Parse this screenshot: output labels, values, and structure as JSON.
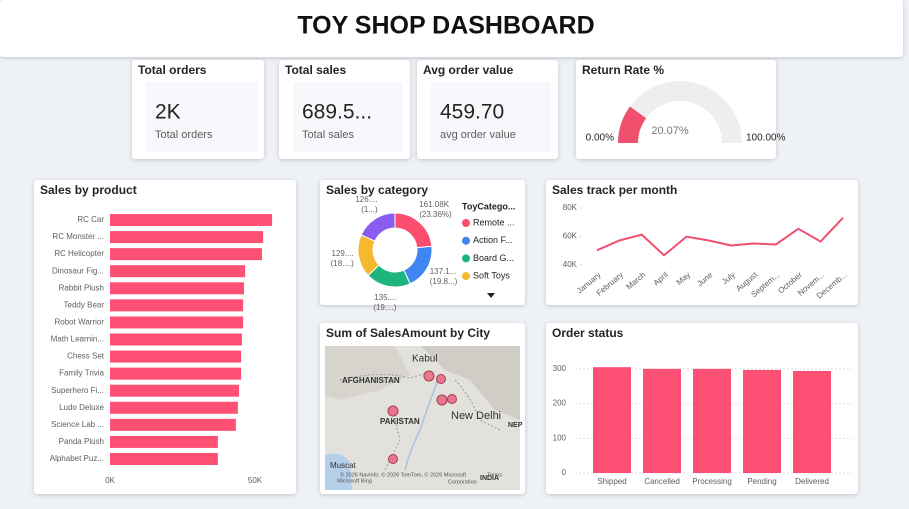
{
  "header": {
    "title": "TOY SHOP DASHBOARD"
  },
  "cards": [
    {
      "title": "Total orders",
      "value": "2K",
      "label": "Total orders"
    },
    {
      "title": "Total sales",
      "value": "689.5...",
      "label": "Total sales"
    },
    {
      "title": "Avg order value",
      "value": "459.70",
      "label": "avg order value"
    }
  ],
  "chart_data": [
    {
      "type": "gauge",
      "title": "Return Rate %",
      "values": [
        20.07
      ],
      "value_labels": [
        "20.07%"
      ],
      "color": "#f0506e",
      "xlim": [
        0,
        100
      ],
      "xticks": [
        {
          "value": 0,
          "label": "0.00%"
        },
        {
          "value": 100,
          "label": "100.00%"
        }
      ]
    },
    {
      "type": "hbar",
      "title": "Sales by product",
      "categories": [
        "RC Car",
        "RC Monster ...",
        "RC Helicopter",
        "Dinosaur Fig...",
        "Rabbit Plush",
        "Teddy Bear",
        "Robot Warrior",
        "Math Learnin...",
        "Chess Set",
        "Family Trivia",
        "Superhero Fi...",
        "Ludo Deluxe",
        "Science Lab ...",
        "Panda Plush",
        "Alphabet Puz..."
      ],
      "values": [
        55900,
        52800,
        52400,
        46600,
        46200,
        45900,
        45900,
        45500,
        45200,
        45200,
        44500,
        44100,
        43400,
        37200,
        37200
      ],
      "color": "#fd5074",
      "xlim": [
        0,
        60000
      ],
      "xticks": [
        {
          "value": 0,
          "label": "0K"
        },
        {
          "value": 50000,
          "label": "50K"
        }
      ]
    },
    {
      "type": "donut",
      "title": "Sales by category",
      "legend_title": "ToyCatego...",
      "categories": [
        "Remote ...",
        "Action F...",
        "Board G...",
        "Soft Toys",
        null
      ],
      "values": [
        161080,
        137100,
        135000,
        129000,
        126000
      ],
      "value_labels": [
        "161.08K",
        "137.1...",
        "135....",
        "129....",
        "126...."
      ],
      "percent_labels": [
        "(23.36%)",
        "(19.8...)",
        "(19....)",
        "(18....)",
        "(1...)"
      ],
      "colors": [
        "#fd4d6e",
        "#3f86f2",
        "#1eb47d",
        "#f6b82c",
        "#8a5cf0"
      ]
    },
    {
      "type": "line",
      "title": "Sales track per month",
      "categories": [
        "January",
        "February",
        "March",
        "April",
        "May",
        "June",
        "July",
        "August",
        "Septem...",
        "October",
        "Novem...",
        "Decemb..."
      ],
      "values": [
        50300,
        57200,
        61300,
        46800,
        59900,
        57200,
        53700,
        55100,
        54400,
        65400,
        56500,
        73100
      ],
      "color": "#f0506e",
      "ylim": [
        40000,
        80000
      ],
      "yticks": [
        {
          "value": 40000,
          "label": "40K"
        },
        {
          "value": 60000,
          "label": "60K"
        },
        {
          "value": 80000,
          "label": "80K"
        }
      ]
    },
    {
      "type": "bar",
      "title": "Order status",
      "categories": [
        "Shipped",
        "Cancelled",
        "Processing",
        "Pending",
        "Delivered"
      ],
      "values": [
        305,
        300,
        300,
        297,
        294
      ],
      "color": "#fd5074",
      "ylim": [
        0,
        340
      ],
      "yticks": [
        0,
        100,
        200,
        300
      ],
      "grid": true
    }
  ],
  "map": {
    "title": "Sum of SalesAmount by City",
    "labels": [
      "Kabul",
      "AFGHANISTAN",
      "PAKISTAN",
      "New Delhi",
      "NEP",
      "Muscat",
      "INDIA"
    ],
    "credits": [
      "© 2026 NavInfo, © 2026 TomTom, © 2026 Microsoft",
      "Corporation",
      "Terms",
      "Microsoft Bing"
    ]
  }
}
